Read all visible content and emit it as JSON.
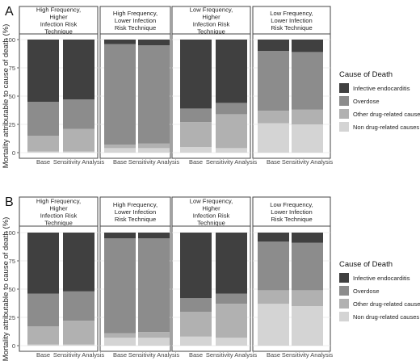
{
  "chart_data": [
    {
      "panel_letter": "A",
      "type": "bar",
      "stacked": true,
      "ylabel": "Mortality attributable to cause of death (%)",
      "ylim": [
        0,
        100
      ],
      "yticks": [
        0,
        25,
        50,
        75,
        100
      ],
      "grid": true,
      "legend_position": "right",
      "legend_title": "Cause of Death",
      "facets": [
        {
          "label": "High Frequency,\nHigher\nInfection Risk\nTechnique"
        },
        {
          "label": "High Frequency,\nLower Infection\nRisk Technique"
        },
        {
          "label": "Low Frequency,\nHigher\nInfection Risk\nTechnique"
        },
        {
          "label": "Low Frequency,\nLower Infection\nRisk Technique"
        }
      ],
      "categories": [
        "Base",
        "Sensitivity Analysis"
      ],
      "series": [
        {
          "name": "Non drug-related causes",
          "color": "#d4d4d4",
          "values": [
            [
              1,
              1
            ],
            [
              4,
              4
            ],
            [
              5,
              4
            ],
            [
              26,
              25
            ]
          ]
        },
        {
          "name": "Other drug-related caused",
          "color": "#b1b1b1",
          "values": [
            [
              14,
              20
            ],
            [
              3,
              4
            ],
            [
              22,
              30
            ],
            [
              11,
              13
            ]
          ]
        },
        {
          "name": "Overdose",
          "color": "#8c8c8c",
          "values": [
            [
              30,
              26
            ],
            [
              89,
              87
            ],
            [
              12,
              10
            ],
            [
              53,
              51
            ]
          ]
        },
        {
          "name": "Infective endocarditis",
          "color": "#404040",
          "values": [
            [
              55,
              53
            ],
            [
              4,
              5
            ],
            [
              61,
              56
            ],
            [
              10,
              11
            ]
          ]
        }
      ]
    },
    {
      "panel_letter": "B",
      "type": "bar",
      "stacked": true,
      "ylabel": "Mortality attributable to cause of death (%)",
      "ylim": [
        0,
        100
      ],
      "yticks": [
        0,
        25,
        50,
        75,
        100
      ],
      "grid": true,
      "legend_position": "right",
      "legend_title": "Cause of Death",
      "facets": [
        {
          "label": "High Frequency,\nHigher\nInfection Risk\nTechnique"
        },
        {
          "label": "High Frequency,\nLower Infection\nRisk Technique"
        },
        {
          "label": "Low Frequency,\nHigher\nInfection Risk\nTechnique"
        },
        {
          "label": "Low Frequency,\nLower Infection\nRisk Technique"
        }
      ],
      "categories": [
        "Base",
        "Sensitivity Analysis"
      ],
      "series": [
        {
          "name": "Non drug-related causes",
          "color": "#d4d4d4",
          "values": [
            [
              1,
              1
            ],
            [
              7,
              7
            ],
            [
              8,
              7
            ],
            [
              37,
              35
            ]
          ]
        },
        {
          "name": "Other drug-related caused",
          "color": "#b1b1b1",
          "values": [
            [
              16,
              21
            ],
            [
              4,
              5
            ],
            [
              22,
              30
            ],
            [
              12,
              14
            ]
          ]
        },
        {
          "name": "Overdose",
          "color": "#8c8c8c",
          "values": [
            [
              29,
              26
            ],
            [
              84,
              83
            ],
            [
              12,
              9
            ],
            [
              43,
              42
            ]
          ]
        },
        {
          "name": "Infective endocarditis",
          "color": "#404040",
          "values": [
            [
              54,
              52
            ],
            [
              5,
              5
            ],
            [
              58,
              54
            ],
            [
              8,
              9
            ]
          ]
        }
      ]
    }
  ]
}
